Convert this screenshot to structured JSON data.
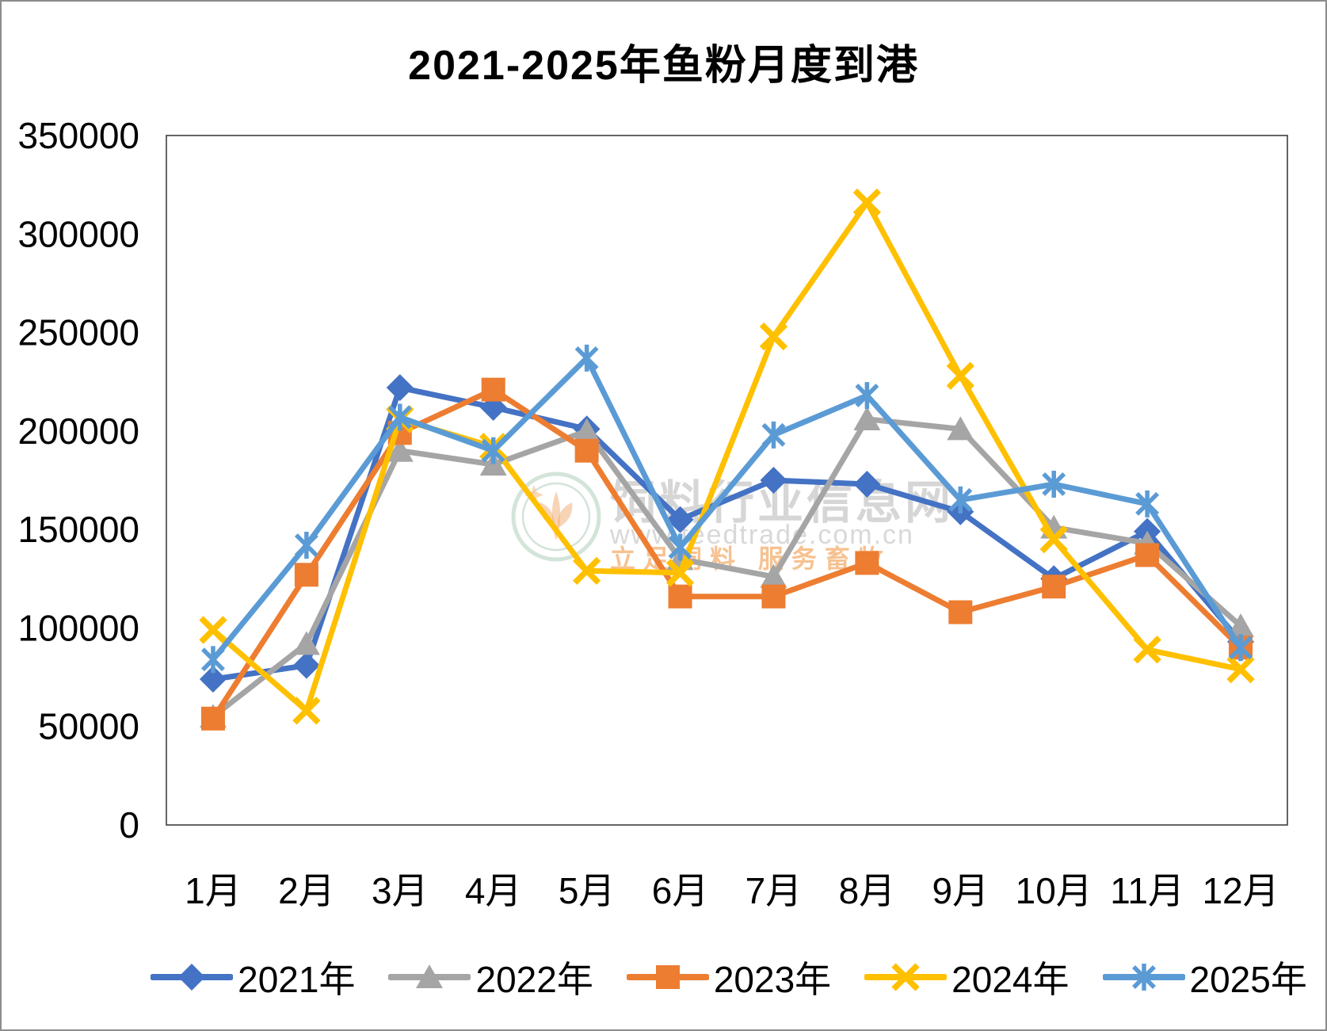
{
  "figure": {
    "title": "2021-2025年鱼粉月度到港",
    "watermark": {
      "site_name": "饲料行业信息网",
      "url": "www.feedtrade.com.cn",
      "slogan": "立足饲料  服务畜牧"
    }
  },
  "chart_data": {
    "type": "line",
    "title": "2021-2025年鱼粉月度到港",
    "categories": [
      "1月",
      "2月",
      "3月",
      "4月",
      "5月",
      "6月",
      "7月",
      "8月",
      "9月",
      "10月",
      "11月",
      "12月"
    ],
    "xlabel": "",
    "ylabel": "",
    "ylim": [
      0,
      350000
    ],
    "ytick_step": 50000,
    "ytick_labels": [
      "0",
      "50000",
      "100000",
      "150000",
      "200000",
      "250000",
      "300000",
      "350000"
    ],
    "grid": false,
    "legend_position": "bottom",
    "series": [
      {
        "name": "2021年",
        "color": "#4472C4",
        "marker": "diamond",
        "values": [
          74000,
          81000,
          222000,
          212000,
          201000,
          155000,
          175000,
          173000,
          159000,
          125000,
          149000,
          93000
        ]
      },
      {
        "name": "2022年",
        "color": "#A5A5A5",
        "marker": "triangle",
        "values": [
          55000,
          92000,
          190000,
          183000,
          200000,
          135000,
          126000,
          206000,
          201000,
          151000,
          143000,
          101000
        ]
      },
      {
        "name": "2023年",
        "color": "#ED7D31",
        "marker": "square",
        "values": [
          54000,
          127000,
          199000,
          221000,
          190000,
          116000,
          116000,
          133000,
          108000,
          121000,
          137000,
          90000
        ]
      },
      {
        "name": "2024年",
        "color": "#FFC000",
        "marker": "x",
        "values": [
          99000,
          58000,
          206000,
          192000,
          129000,
          128000,
          248000,
          316000,
          228000,
          145000,
          89000,
          79000
        ]
      },
      {
        "name": "2025年",
        "color": "#5B9BD5",
        "marker": "asterisk",
        "values": [
          84000,
          142000,
          207000,
          190000,
          237000,
          141000,
          198000,
          218000,
          165000,
          173000,
          163000,
          90000
        ]
      }
    ]
  }
}
